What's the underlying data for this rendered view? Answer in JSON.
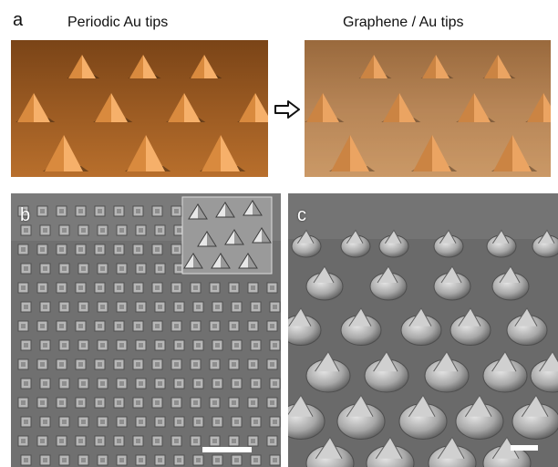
{
  "panel_a": {
    "letter": "a",
    "left_title": "Periodic Au tips",
    "right_title": "Graphene / Au tips"
  },
  "panel_b": {
    "letter": "b"
  },
  "panel_c": {
    "letter": "c"
  },
  "colors": {
    "au_dark": "#4a2a12",
    "au_mid": "#a15f22",
    "au_light": "#f1a55a",
    "graphene_tint": "#c48c5a",
    "sem_bg": "#6f6f6f",
    "scale_bar": "#ffffff"
  }
}
